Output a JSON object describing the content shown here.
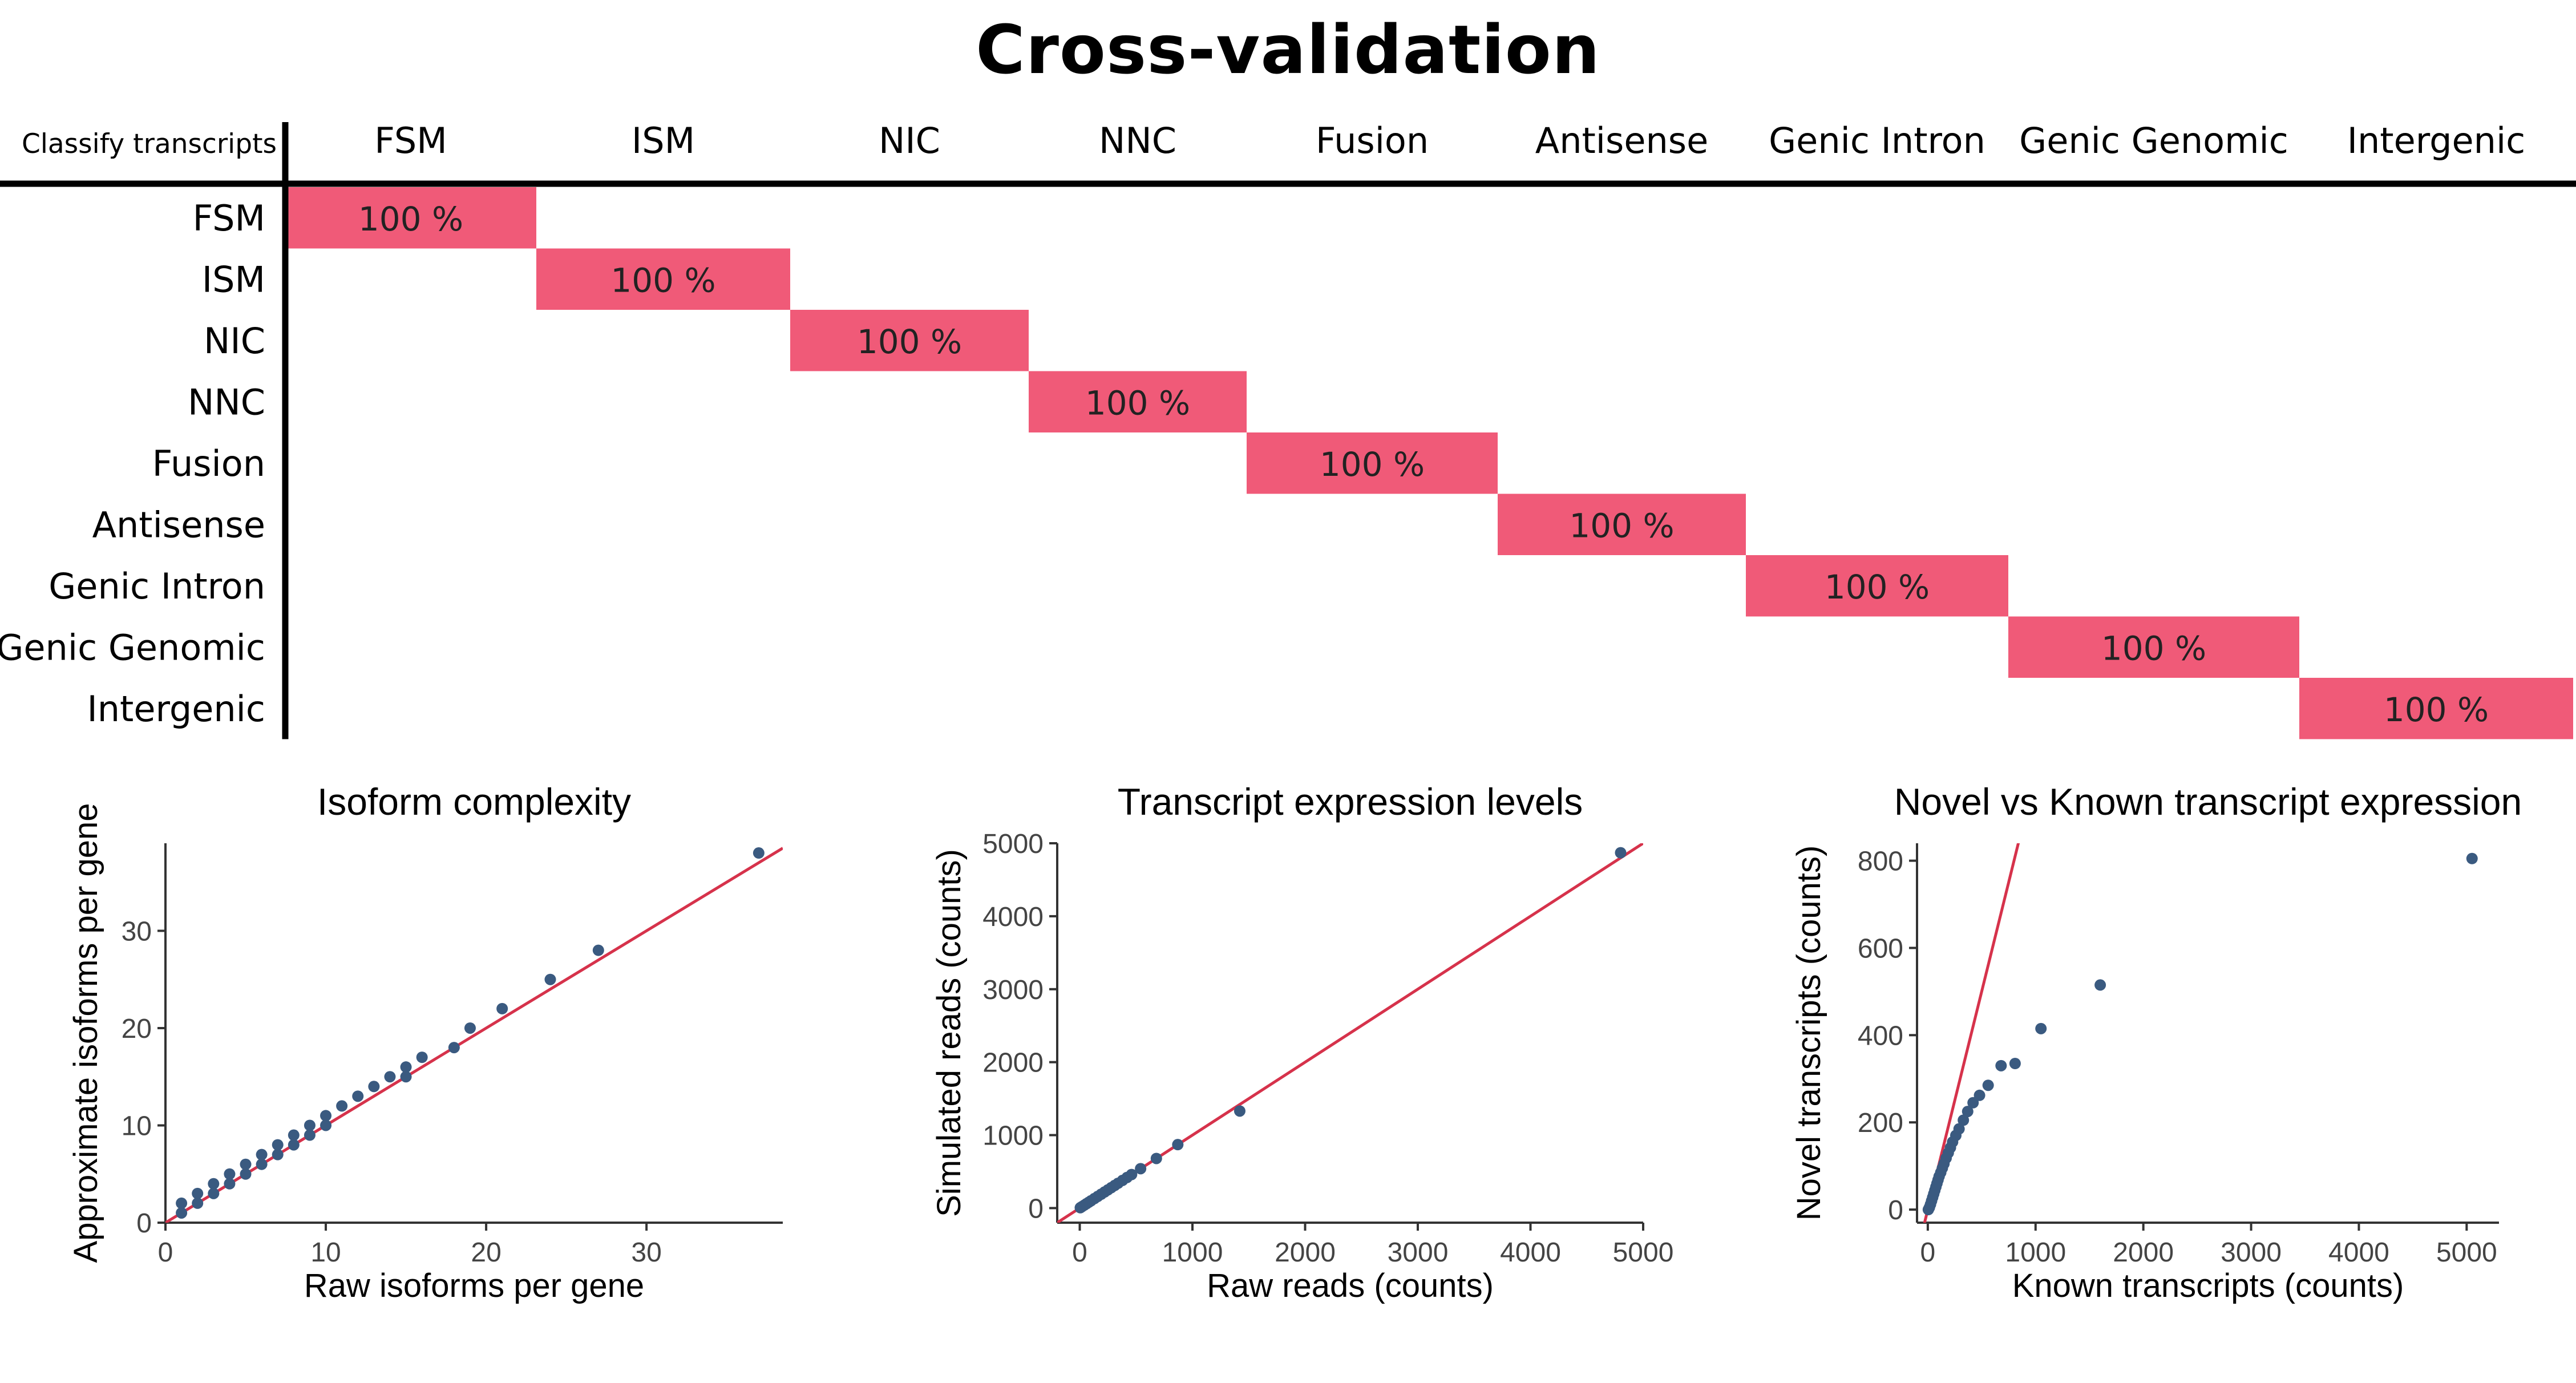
{
  "title": "Cross-validation",
  "chart_data": [
    {
      "type": "heatmap",
      "corner_label": "Classify transcripts",
      "columns": [
        "FSM",
        "ISM",
        "NIC",
        "NNC",
        "Fusion",
        "Antisense",
        "Genic Intron",
        "Genic Genomic",
        "Intergenic"
      ],
      "rows": [
        "FSM",
        "ISM",
        "NIC",
        "NNC",
        "Fusion",
        "Antisense",
        "Genic Intron",
        "Genic Genomic",
        "Intergenic"
      ],
      "cells": [
        {
          "row": 0,
          "col": 0,
          "value": 100,
          "label": "100 %"
        },
        {
          "row": 1,
          "col": 1,
          "value": 100,
          "label": "100 %"
        },
        {
          "row": 2,
          "col": 2,
          "value": 100,
          "label": "100 %"
        },
        {
          "row": 3,
          "col": 3,
          "value": 100,
          "label": "100 %"
        },
        {
          "row": 4,
          "col": 4,
          "value": 100,
          "label": "100 %"
        },
        {
          "row": 5,
          "col": 5,
          "value": 100,
          "label": "100 %"
        },
        {
          "row": 6,
          "col": 6,
          "value": 100,
          "label": "100 %"
        },
        {
          "row": 7,
          "col": 7,
          "value": 100,
          "label": "100 %"
        },
        {
          "row": 8,
          "col": 8,
          "value": 100,
          "label": "100 %"
        }
      ],
      "cell_color": "#f05a78"
    },
    {
      "type": "scatter",
      "title": "Isoform complexity",
      "xlabel": "Raw isoforms per gene",
      "ylabel": "Approximate isoforms per gene",
      "xlim": [
        0,
        38.5
      ],
      "ylim": [
        0,
        39
      ],
      "xticks": [
        0,
        10,
        20,
        30
      ],
      "yticks": [
        0,
        10,
        20,
        30
      ],
      "reference_line": {
        "slope": 1,
        "intercept": 0,
        "color": "#d6324b"
      },
      "point_color": "#3a5a80",
      "points": [
        [
          1,
          1
        ],
        [
          1,
          2
        ],
        [
          2,
          2
        ],
        [
          2,
          3
        ],
        [
          3,
          3
        ],
        [
          3,
          4
        ],
        [
          4,
          4
        ],
        [
          4,
          5
        ],
        [
          5,
          5
        ],
        [
          5,
          6
        ],
        [
          6,
          6
        ],
        [
          6,
          7
        ],
        [
          7,
          7
        ],
        [
          7,
          8
        ],
        [
          8,
          8
        ],
        [
          8,
          9
        ],
        [
          9,
          9
        ],
        [
          9,
          10
        ],
        [
          10,
          10
        ],
        [
          10,
          11
        ],
        [
          11,
          12
        ],
        [
          12,
          13
        ],
        [
          13,
          14
        ],
        [
          14,
          15
        ],
        [
          15,
          15
        ],
        [
          15,
          16
        ],
        [
          16,
          17
        ],
        [
          18,
          18
        ],
        [
          19,
          20
        ],
        [
          21,
          22
        ],
        [
          24,
          25
        ],
        [
          27,
          28
        ],
        [
          37,
          38
        ]
      ]
    },
    {
      "type": "scatter",
      "title": "Transcript expression levels",
      "xlabel": "Raw reads (counts)",
      "ylabel": "Simulated reads (counts)",
      "xlim": [
        -200,
        5000
      ],
      "ylim": [
        -200,
        5000
      ],
      "xticks": [
        0,
        1000,
        2000,
        3000,
        4000,
        5000
      ],
      "yticks": [
        0,
        1000,
        2000,
        3000,
        4000,
        5000
      ],
      "reference_line": {
        "slope": 1,
        "intercept": 0,
        "color": "#d6324b"
      },
      "point_color": "#3a5a80",
      "points": [
        [
          5,
          5
        ],
        [
          20,
          20
        ],
        [
          40,
          40
        ],
        [
          60,
          60
        ],
        [
          80,
          80
        ],
        [
          100,
          100
        ],
        [
          130,
          130
        ],
        [
          160,
          160
        ],
        [
          190,
          190
        ],
        [
          220,
          220
        ],
        [
          250,
          250
        ],
        [
          280,
          280
        ],
        [
          310,
          310
        ],
        [
          340,
          340
        ],
        [
          380,
          380
        ],
        [
          420,
          420
        ],
        [
          460,
          460
        ],
        [
          540,
          540
        ],
        [
          680,
          680
        ],
        [
          870,
          870
        ],
        [
          1420,
          1330
        ],
        [
          4800,
          4870
        ]
      ]
    },
    {
      "type": "scatter",
      "title": "Novel vs Known transcript expression",
      "xlabel": "Known transcripts (counts)",
      "ylabel": "Novel transcripts (counts)",
      "xlim": [
        -100,
        5300
      ],
      "ylim": [
        -30,
        840
      ],
      "xticks": [
        0,
        1000,
        2000,
        3000,
        4000,
        5000
      ],
      "yticks": [
        0,
        200,
        400,
        600,
        800
      ],
      "reference_line": {
        "slope": 1,
        "intercept": 0,
        "color": "#d6324b"
      },
      "point_color": "#3a5a80",
      "points": [
        [
          5,
          0
        ],
        [
          15,
          5
        ],
        [
          25,
          12
        ],
        [
          35,
          20
        ],
        [
          45,
          28
        ],
        [
          55,
          36
        ],
        [
          65,
          44
        ],
        [
          75,
          52
        ],
        [
          85,
          60
        ],
        [
          95,
          68
        ],
        [
          105,
          76
        ],
        [
          120,
          85
        ],
        [
          135,
          95
        ],
        [
          150,
          105
        ],
        [
          170,
          118
        ],
        [
          190,
          130
        ],
        [
          210,
          142
        ],
        [
          230,
          155
        ],
        [
          260,
          170
        ],
        [
          290,
          185
        ],
        [
          330,
          205
        ],
        [
          370,
          225
        ],
        [
          420,
          245
        ],
        [
          480,
          262
        ],
        [
          560,
          285
        ],
        [
          680,
          330
        ],
        [
          810,
          335
        ],
        [
          1050,
          415
        ],
        [
          1600,
          515
        ],
        [
          5050,
          805
        ]
      ]
    }
  ]
}
